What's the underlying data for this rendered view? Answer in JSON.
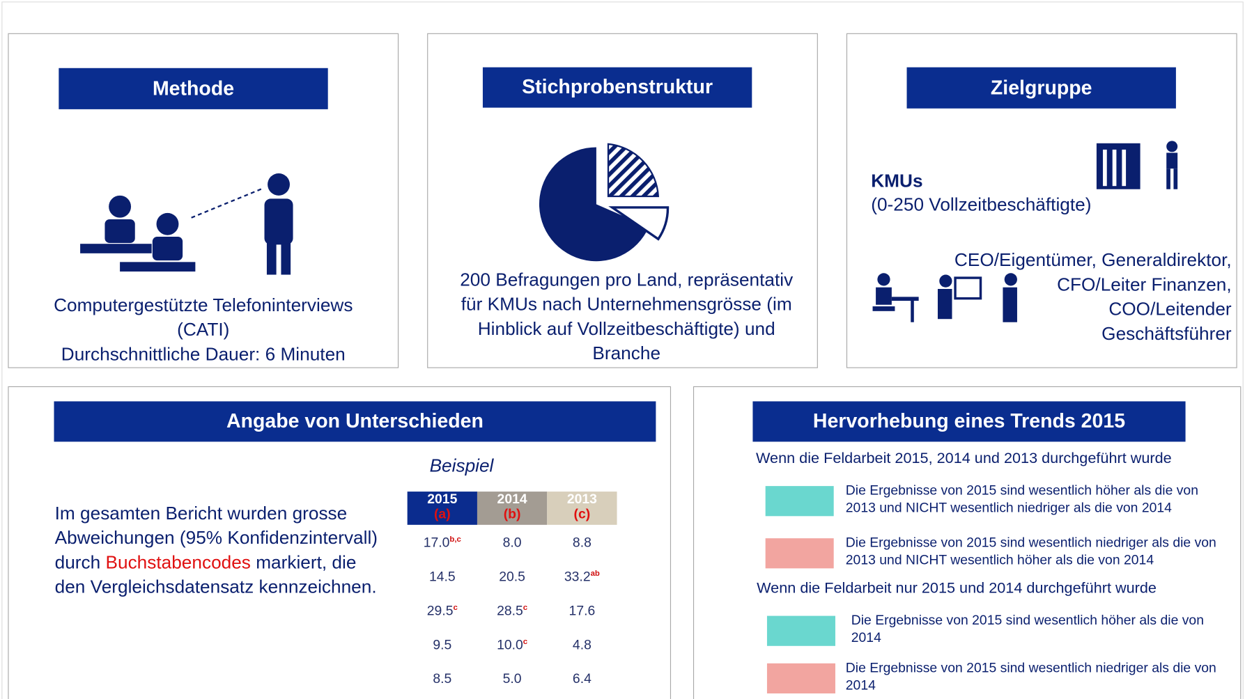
{
  "methode": {
    "title": "Methode",
    "text": [
      "Computergestützte Telefoninterviews",
      "(CATI)",
      "Durchschnittliche Dauer: 6 Minuten"
    ]
  },
  "stichprobe": {
    "title": "Stichprobenstruktur",
    "text": [
      "200 Befragungen pro Land, repräsentativ",
      "für KMUs nach Unternehmensgrösse (im",
      "Hinblick auf Vollzeitbeschäftigte) und",
      "Branche"
    ]
  },
  "zielgruppe": {
    "title": "Zielgruppe",
    "kmu": "KMUs",
    "kmu_note": "(0-250 Vollzeitbeschäftigte)",
    "roles": [
      "CEO/Eigentümer, Generaldirektor,",
      "CFO/Leiter Finanzen,",
      "COO/Leitender",
      "Geschäftsführer"
    ]
  },
  "unterschiede": {
    "title": "Angabe von Unterschieden",
    "text_before": "Im gesamten Bericht wurden grosse Abweichungen (95% Konfidenzintervall) durch ",
    "highlight": "Buchstabencodes",
    "text_after": " markiert, die den Vergleichsdatensatz kennzeichnen.",
    "example_label": "Beispiel",
    "table": {
      "columns": [
        {
          "year": "2015",
          "code": "(a)",
          "color": "#0b2c8e"
        },
        {
          "year": "2014",
          "code": "(b)",
          "color": "#a39c93"
        },
        {
          "year": "2013",
          "code": "(c)",
          "color": "#d8cfbb"
        }
      ],
      "rows": [
        [
          {
            "value": "17.0",
            "sup": "b,c"
          },
          {
            "value": "8.0"
          },
          {
            "value": "8.8"
          }
        ],
        [
          {
            "value": "14.5"
          },
          {
            "value": "20.5"
          },
          {
            "value": "33.2",
            "sup": "ab"
          }
        ],
        [
          {
            "value": "29.5",
            "sup": "c"
          },
          {
            "value": "28.5",
            "sup": "c"
          },
          {
            "value": "17.6"
          }
        ],
        [
          {
            "value": "9.5"
          },
          {
            "value": "10.0",
            "sup": "c"
          },
          {
            "value": "4.8"
          }
        ],
        [
          {
            "value": "8.5"
          },
          {
            "value": "5.0"
          },
          {
            "value": "6.4"
          }
        ]
      ]
    }
  },
  "trend": {
    "title": "Hervorhebung eines Trends 2015",
    "groups": [
      {
        "heading": "Wenn die Feldarbeit 2015, 2014 und 2013 durchgeführt wurde",
        "items": [
          {
            "text": "Die Ergebnisse von 2015 sind wesentlich höher als die von 2013 und NICHT wesentlich niedriger als die von 2014",
            "color": "#6ad7cf"
          },
          {
            "text": "Die Ergebnisse von 2015 sind wesentlich niedriger als die von 2013 und NICHT wesentlich höher als die von 2014",
            "color": "#f2a5a0"
          }
        ]
      },
      {
        "heading": "Wenn die Feldarbeit nur 2015 und 2014 durchgeführt wurde",
        "items": [
          {
            "text": "Die Ergebnisse von 2015 sind wesentlich höher als die von 2014",
            "color": "#6ad7cf"
          },
          {
            "text": "Die Ergebnisse von 2015 sind wesentlich niedriger als die von 2014",
            "color": "#f2a5a0"
          }
        ]
      }
    ]
  }
}
